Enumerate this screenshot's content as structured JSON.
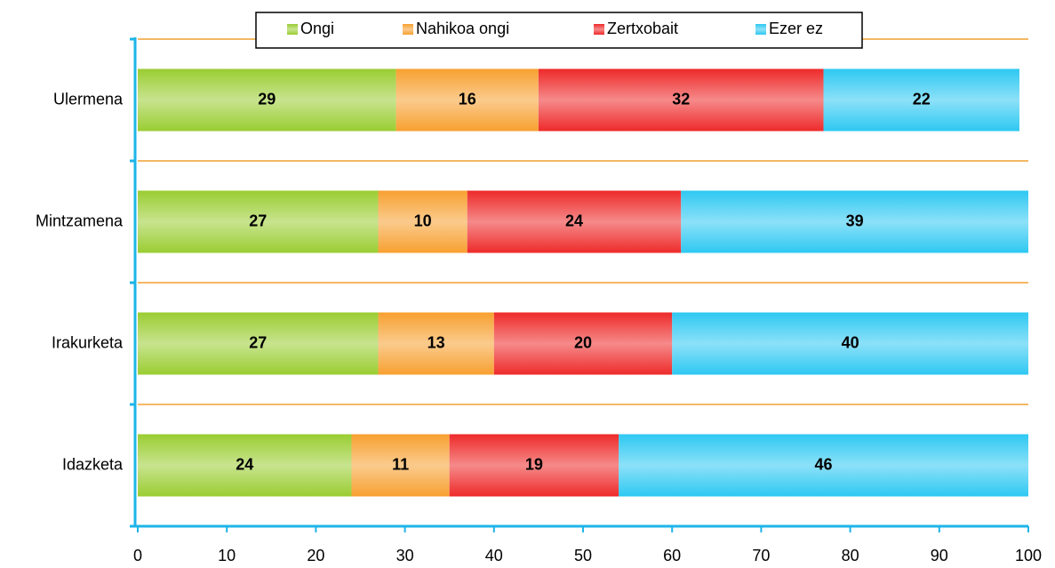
{
  "chart_data": {
    "type": "stacked-bar-horizontal",
    "categories": [
      "Ulermena",
      "Mintzamena",
      "Irakurketa",
      "Idazketa"
    ],
    "series": [
      {
        "name": "Ongi",
        "color": "#9acd32",
        "values": [
          29,
          27,
          27,
          24
        ]
      },
      {
        "name": "Nahikoa ongi",
        "color": "#f7a030",
        "values": [
          16,
          10,
          13,
          11
        ]
      },
      {
        "name": "Zertxobait",
        "color": "#ee2a2a",
        "values": [
          32,
          24,
          20,
          19
        ]
      },
      {
        "name": "Ezer ez",
        "color": "#2ec8f2",
        "values": [
          22,
          39,
          40,
          46
        ]
      }
    ],
    "xlim": [
      0,
      100
    ],
    "xticks": [
      0,
      10,
      20,
      30,
      40,
      50,
      60,
      70,
      80,
      90,
      100
    ],
    "legend": "top"
  }
}
